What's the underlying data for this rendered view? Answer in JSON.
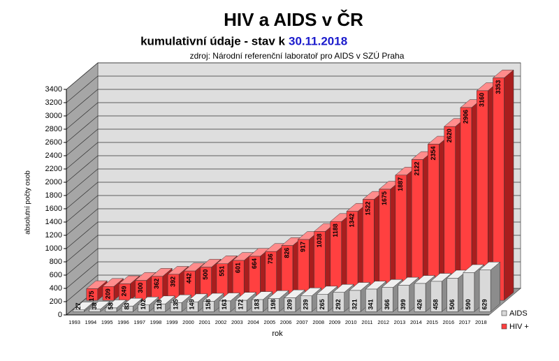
{
  "chart_data": {
    "type": "bar3d",
    "title": "HIV a AIDS v ČR",
    "subtitle": "kumulativní údaje - stav k",
    "subtitle_date": "30.11.2018",
    "source": "zdroj:  Národní  referenční  laboratoř  pro AIDS v SZÚ  Praha",
    "xlabel": "rok",
    "ylabel": "absolutní počty osob",
    "categories": [
      "1993",
      "1994",
      "1995",
      "1996",
      "1997",
      "1998",
      "1999",
      "2000",
      "2001",
      "2002",
      "2003",
      "2004",
      "2005",
      "2006",
      "2007",
      "2008",
      "2009",
      "2010",
      "2011",
      "2012",
      "2013",
      "2014",
      "2015",
      "2016",
      "2017",
      "2018"
    ],
    "series": [
      {
        "name": "AIDS",
        "color": "#d9d9d9",
        "values": [
          27,
          38,
          58,
          83,
          102,
          118,
          135,
          149,
          158,
          163,
          172,
          183,
          198,
          209,
          239,
          265,
          292,
          321,
          341,
          366,
          399,
          426,
          458,
          506,
          590,
          629
        ]
      },
      {
        "name": "HIV +",
        "color": "#ff4040",
        "values": [
          175,
          209,
          249,
          300,
          362,
          392,
          442,
          500,
          551,
          601,
          664,
          736,
          826,
          917,
          1038,
          1188,
          1342,
          1522,
          1675,
          1887,
          2122,
          2354,
          2620,
          2906,
          3160,
          3353
        ]
      }
    ],
    "ylim": [
      0,
      3400
    ],
    "yticks": [
      0,
      200,
      400,
      600,
      800,
      1000,
      1200,
      1400,
      1600,
      1800,
      2000,
      2200,
      2400,
      2600,
      2800,
      3000,
      3200,
      3400
    ],
    "grid": true,
    "legend": "right"
  }
}
